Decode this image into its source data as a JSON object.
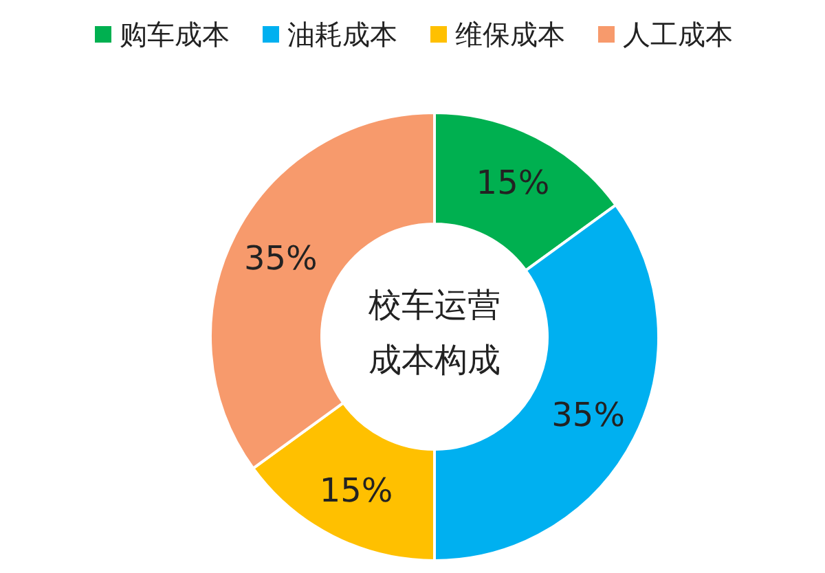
{
  "chart_data": {
    "type": "donut",
    "title": "校车运营成本构成",
    "categories": [
      "购车成本",
      "油耗成本",
      "维保成本",
      "人工成本"
    ],
    "values": [
      15,
      35,
      15,
      35
    ],
    "value_labels": [
      "15%",
      "35%",
      "15%",
      "35%"
    ],
    "colors": [
      "#00b050",
      "#00b0f0",
      "#ffc000",
      "#f79a6c"
    ],
    "legend": "top"
  }
}
